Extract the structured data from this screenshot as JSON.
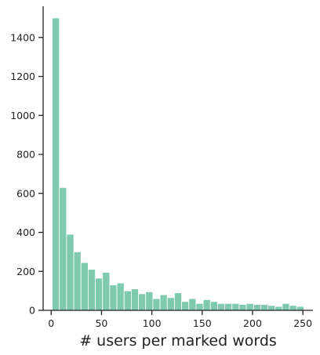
{
  "chart_data": {
    "type": "bar",
    "title": "",
    "xlabel": "# users per marked words",
    "ylabel": "",
    "xlim": [
      -8,
      260
    ],
    "ylim": [
      0,
      1560
    ],
    "x_ticks": [
      0,
      50,
      100,
      150,
      200,
      250
    ],
    "y_ticks": [
      0,
      200,
      400,
      600,
      800,
      1000,
      1200,
      1400
    ],
    "grid": false,
    "bar_color": "#7fcaae",
    "bin_width": 7.14,
    "bin_starts": [
      1.0,
      8.14,
      15.29,
      22.43,
      29.57,
      36.71,
      43.86,
      51.0,
      58.14,
      65.29,
      72.43,
      79.57,
      86.71,
      93.86,
      101.0,
      108.14,
      115.29,
      122.43,
      129.57,
      136.71,
      143.86,
      151.0,
      158.14,
      165.29,
      172.43,
      179.57,
      186.71,
      193.86,
      201.0,
      208.14,
      215.29,
      222.43,
      229.57,
      236.71,
      243.86
    ],
    "values": [
      1500,
      630,
      390,
      300,
      245,
      210,
      165,
      195,
      130,
      140,
      100,
      110,
      85,
      95,
      60,
      80,
      65,
      90,
      45,
      60,
      35,
      55,
      45,
      35,
      35,
      35,
      30,
      35,
      30,
      30,
      25,
      20,
      35,
      25,
      20
    ]
  }
}
